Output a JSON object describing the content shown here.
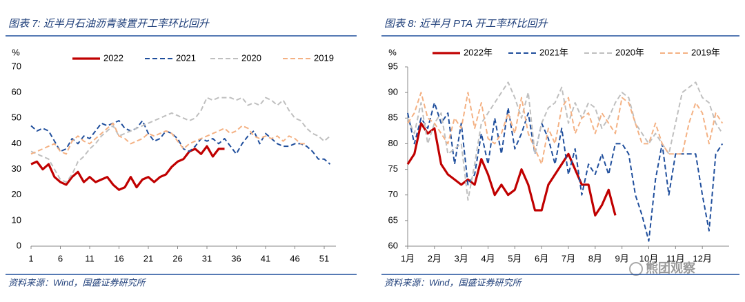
{
  "chart_data": [
    {
      "type": "line",
      "title": "图表 7: 近半月石油沥青装置开工率环比回升",
      "y_label": "%",
      "source": "资料来源：Wind，国盛证券研究所",
      "x": [
        1,
        2,
        3,
        4,
        5,
        6,
        7,
        8,
        9,
        10,
        11,
        12,
        13,
        14,
        15,
        16,
        17,
        18,
        19,
        20,
        21,
        22,
        23,
        24,
        25,
        26,
        27,
        28,
        29,
        30,
        31,
        32,
        33,
        34,
        35,
        36,
        37,
        38,
        39,
        40,
        41,
        42,
        43,
        44,
        45,
        46,
        47,
        48,
        49,
        50,
        51,
        52
      ],
      "xlim": [
        1,
        53
      ],
      "xticks": [
        1,
        6,
        11,
        16,
        21,
        26,
        31,
        36,
        41,
        46,
        51
      ],
      "ylim": [
        0,
        70
      ],
      "yticks": [
        0,
        10,
        20,
        30,
        40,
        50,
        60,
        70
      ],
      "series": [
        {
          "name": "2022",
          "color": "#c00000",
          "style": "solid",
          "values": [
            32,
            33,
            30,
            32,
            27,
            25,
            24,
            27,
            29,
            25,
            27,
            25,
            26,
            27,
            24,
            22,
            23,
            27,
            23,
            26,
            27,
            25,
            27,
            28,
            31,
            33,
            34,
            37,
            38,
            36,
            39,
            35,
            38,
            38,
            null,
            null,
            null,
            null,
            null,
            null,
            null,
            null,
            null,
            null,
            null,
            null,
            null,
            null,
            null,
            null,
            null,
            null
          ]
        },
        {
          "name": "2021",
          "color": "#1f4e9c",
          "style": "dashed",
          "values": [
            47,
            45,
            46,
            45,
            41,
            37,
            38,
            42,
            40,
            43,
            42,
            45,
            48,
            47,
            48,
            49,
            46,
            45,
            46,
            49,
            44,
            41,
            42,
            45,
            44,
            42,
            38,
            37,
            39,
            42,
            41,
            42,
            40,
            42,
            39,
            36,
            40,
            43,
            45,
            40,
            44,
            42,
            40,
            39,
            39,
            40,
            40,
            39,
            37,
            34,
            34,
            32
          ]
        },
        {
          "name": "2020",
          "color": "#bfbfbf",
          "style": "dashed",
          "values": [
            37,
            36,
            35,
            34,
            30,
            26,
            25,
            28,
            33,
            35,
            38,
            40,
            43,
            45,
            47,
            43,
            44,
            45,
            46,
            47,
            48,
            49,
            50,
            51,
            52,
            51,
            50,
            49,
            50,
            53,
            58,
            57,
            58,
            58,
            58,
            57,
            58,
            55,
            56,
            55,
            58,
            57,
            55,
            57,
            53,
            50,
            49,
            46,
            44,
            43,
            41,
            43
          ]
        },
        {
          "name": "2019",
          "color": "#f4b183",
          "style": "dashed",
          "values": [
            36,
            37,
            38,
            39,
            40,
            37,
            36,
            41,
            43,
            41,
            40,
            42,
            44,
            46,
            48,
            43,
            42,
            40,
            41,
            42,
            44,
            43,
            44,
            45,
            44,
            41,
            38,
            40,
            41,
            42,
            43,
            44,
            45,
            46,
            44,
            45,
            47,
            46,
            43,
            42,
            43,
            42,
            43,
            41,
            43,
            42,
            40,
            40,
            null,
            null,
            null,
            null
          ]
        }
      ]
    },
    {
      "type": "line",
      "title": "图表 8: 近半月 PTA 开工率环比回升",
      "y_label": "%",
      "source": "资料来源：Wind，国盛证券研究所",
      "x": [
        1,
        1.25,
        1.5,
        1.75,
        2,
        2.25,
        2.5,
        2.75,
        3,
        3.25,
        3.5,
        3.75,
        4,
        4.25,
        4.5,
        4.75,
        5,
        5.25,
        5.5,
        5.75,
        6,
        6.25,
        6.5,
        6.75,
        7,
        7.25,
        7.5,
        7.75,
        8,
        8.25,
        8.5,
        8.75,
        9,
        9.25,
        9.5,
        9.75,
        10,
        10.25,
        10.5,
        10.75,
        11,
        11.25,
        11.5,
        11.75,
        12,
        12.25,
        12.5,
        12.75
      ],
      "xlim": [
        1,
        13
      ],
      "xticks": [
        {
          "value": 1,
          "label": "1月"
        },
        {
          "value": 2,
          "label": "2月"
        },
        {
          "value": 3,
          "label": "3月"
        },
        {
          "value": 4,
          "label": "4月"
        },
        {
          "value": 5,
          "label": "5月"
        },
        {
          "value": 6,
          "label": "6月"
        },
        {
          "value": 7,
          "label": "7月"
        },
        {
          "value": 8,
          "label": "8月"
        },
        {
          "value": 9,
          "label": "9月"
        },
        {
          "value": 10,
          "label": "10月"
        },
        {
          "value": 11,
          "label": "11月"
        },
        {
          "value": 12,
          "label": "12月"
        }
      ],
      "ylim": [
        60,
        95
      ],
      "yticks": [
        60,
        65,
        70,
        75,
        80,
        85,
        90,
        95
      ],
      "series": [
        {
          "name": "2022年",
          "color": "#c00000",
          "style": "solid",
          "values": [
            76,
            78,
            84,
            82,
            83,
            76,
            74,
            73,
            72,
            73,
            72,
            77,
            74,
            70,
            72,
            70,
            71,
            75,
            72,
            67,
            67,
            72,
            74,
            76,
            78,
            75,
            72,
            72,
            66,
            68,
            71,
            66,
            null,
            null,
            null,
            null,
            null,
            null,
            null,
            null,
            null,
            null,
            null,
            null,
            null,
            null,
            null,
            null
          ]
        },
        {
          "name": "2021年",
          "color": "#1f4e9c",
          "style": "dashed",
          "values": [
            86,
            80,
            85,
            83,
            88,
            84,
            86,
            76,
            84,
            72,
            74,
            82,
            76,
            85,
            78,
            87,
            79,
            82,
            86,
            78,
            84,
            81,
            76,
            83,
            74,
            79,
            70,
            76,
            74,
            78,
            74,
            80,
            80,
            78,
            70,
            66,
            61,
            73,
            80,
            70,
            78,
            78,
            78,
            78,
            70,
            63,
            78,
            80
          ]
        },
        {
          "name": "2020年",
          "color": "#bfbfbf",
          "style": "dashed",
          "values": [
            85,
            82,
            88,
            80,
            84,
            86,
            78,
            79,
            80,
            69,
            76,
            84,
            86,
            88,
            90,
            92,
            89,
            85,
            90,
            78,
            84,
            87,
            88,
            91,
            84,
            88,
            85,
            88,
            87,
            83,
            85,
            88,
            90,
            89,
            84,
            82,
            80,
            82,
            80,
            78,
            84,
            90,
            91,
            92,
            89,
            88,
            84,
            82
          ]
        },
        {
          "name": "2019年",
          "color": "#f4b183",
          "style": "dashed",
          "values": [
            84,
            86,
            90,
            85,
            84,
            82,
            80,
            85,
            83,
            90,
            83,
            88,
            81,
            80,
            82,
            86,
            82,
            89,
            82,
            79,
            76,
            83,
            80,
            87,
            89,
            82,
            85,
            86,
            82,
            86,
            84,
            82,
            89,
            88,
            84,
            80,
            80,
            84,
            80,
            78,
            78,
            78,
            84,
            88,
            86,
            80,
            86,
            84
          ]
        }
      ]
    }
  ],
  "watermark": "熊团观察"
}
